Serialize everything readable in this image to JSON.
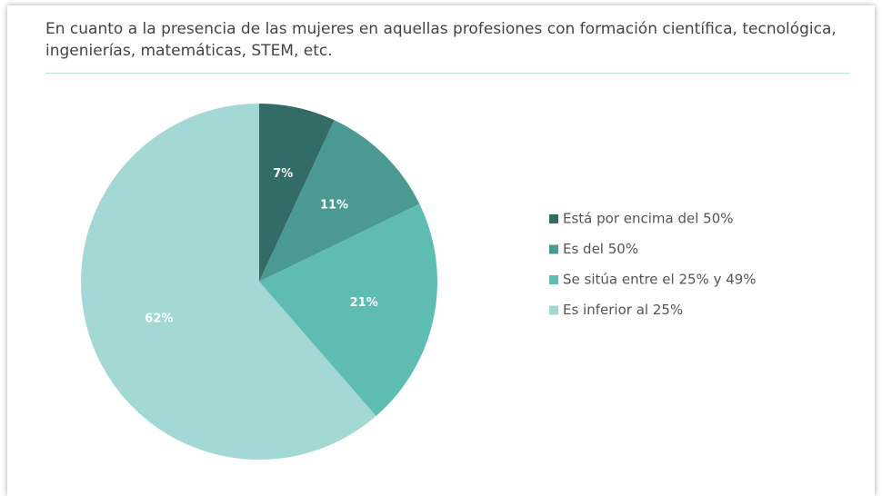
{
  "chart_data": {
    "type": "pie",
    "title": "En cuanto a la presencia de las mujeres en aquellas profesiones con formación científica, tecnológica, ingenierías, matemáticas, STEM, etc.",
    "categories": [
      "Está por encima del 50%",
      "Es del 50%",
      "Se sitúa entre el 25% y 49%",
      "Es inferior al 25%"
    ],
    "values": [
      7,
      11,
      21,
      62
    ],
    "value_labels": [
      "7%",
      "11%",
      "21%",
      "62%"
    ],
    "colors": [
      "#336b66",
      "#4a9a93",
      "#5fbcb3",
      "#a3d8d5"
    ],
    "legend": "right"
  }
}
